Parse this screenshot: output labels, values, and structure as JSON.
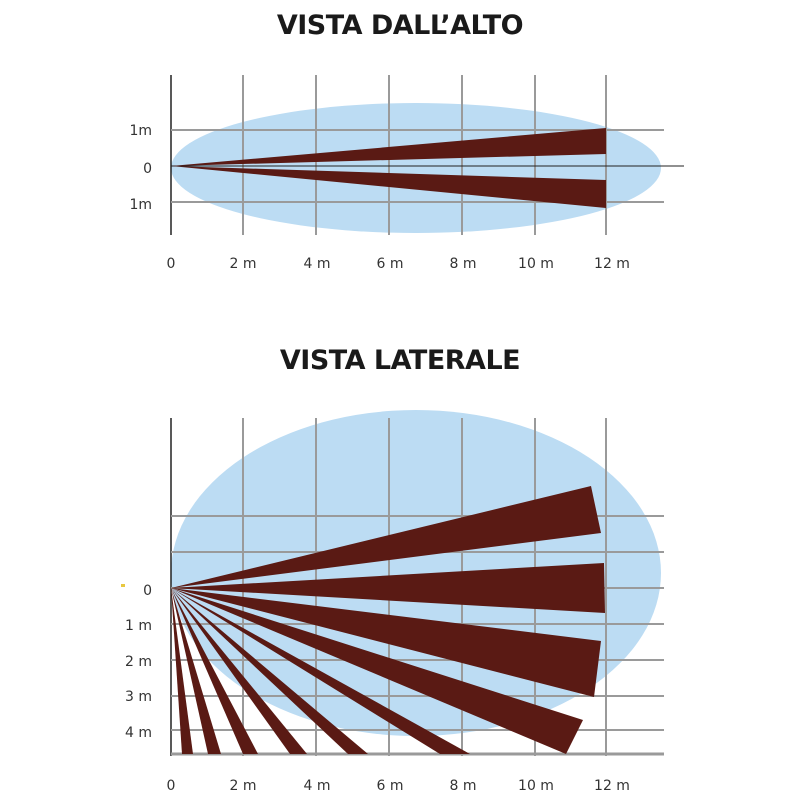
{
  "colors": {
    "zone": "#bcdcf3",
    "beam": "#5a1a14",
    "grid": "#9a9a9a",
    "axis": "#222222",
    "text": "#333333",
    "marker": "#e8c840"
  },
  "top_view": {
    "title": "VISTA DALL’ALTO",
    "x_ticks": [
      "0",
      "2 m",
      "4 m",
      "6 m",
      "8 m",
      "10 m",
      "12 m"
    ],
    "y_ticks": [
      "1m",
      "0",
      "1m"
    ],
    "beams": [
      {
        "range_m": 12,
        "width_m": 0.7
      },
      {
        "range_m": 12,
        "width_m": 0.7
      }
    ]
  },
  "side_view": {
    "title": "VISTA LATERALE",
    "x_ticks": [
      "0",
      "2 m",
      "4 m",
      "6 m",
      "8 m",
      "10 m",
      "12 m"
    ],
    "y_ticks": [
      "0",
      "1 m",
      "2 m",
      "3 m",
      "4 m"
    ],
    "beams": [
      {
        "name": "beam-1"
      },
      {
        "name": "beam-2"
      },
      {
        "name": "beam-3"
      },
      {
        "name": "beam-4"
      },
      {
        "name": "beam-5"
      },
      {
        "name": "beam-6"
      },
      {
        "name": "beam-7"
      },
      {
        "name": "beam-8"
      },
      {
        "name": "beam-9"
      },
      {
        "name": "beam-10"
      }
    ]
  }
}
